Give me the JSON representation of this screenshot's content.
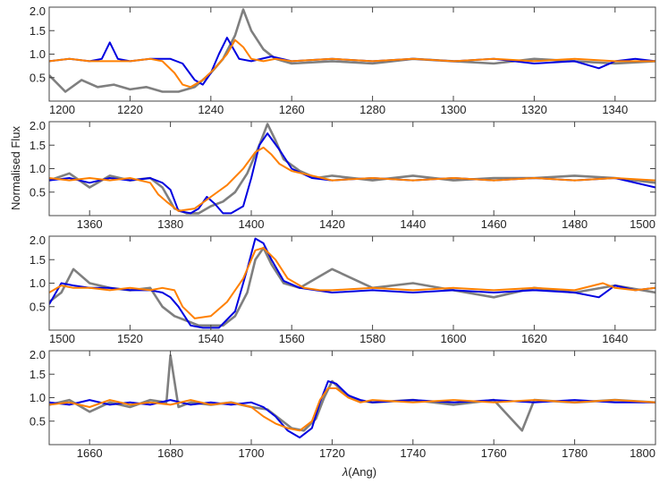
{
  "chart_data": {
    "type": "line",
    "ylabel": "Normalised Flux",
    "xlabel": "λ(Ang)",
    "xlabel_parts": {
      "symbol": "λ",
      "unit": "(Ang)"
    },
    "colors": {
      "observed": "#7f7f7f",
      "model_blue": "#0000e0",
      "model_orange": "#ff8000",
      "frame": "#444444"
    },
    "series_keys": [
      "observed",
      "model_blue",
      "model_orange"
    ],
    "panels": [
      {
        "xlim": [
          1200,
          1350
        ],
        "ylim": [
          0,
          2.0
        ],
        "xticks": [
          1200,
          1220,
          1240,
          1260,
          1280,
          1300,
          1320,
          1340
        ],
        "xtick_labels": [
          "1200",
          "1220",
          "1240",
          "1260",
          "1280",
          "1300",
          "1320",
          "1340"
        ],
        "yticks": [
          0.5,
          1.0,
          1.5,
          2.0
        ],
        "ytick_labels": [
          "0.5",
          "1.0",
          "1.5",
          "2.0"
        ],
        "series": [
          {
            "key": "observed",
            "x": [
              1200,
              1204,
              1208,
              1212,
              1216,
              1220,
              1224,
              1228,
              1232,
              1236,
              1240,
              1243,
              1246,
              1248,
              1250,
              1253,
              1256,
              1260,
              1270,
              1280,
              1290,
              1300,
              1310,
              1320,
              1330,
              1340,
              1350
            ],
            "y": [
              0.55,
              0.2,
              0.45,
              0.3,
              0.35,
              0.25,
              0.3,
              0.2,
              0.2,
              0.3,
              0.6,
              0.9,
              1.4,
              1.95,
              1.5,
              1.1,
              0.9,
              0.8,
              0.85,
              0.8,
              0.9,
              0.85,
              0.8,
              0.9,
              0.85,
              0.8,
              0.85
            ]
          },
          {
            "key": "model_blue",
            "x": [
              1200,
              1205,
              1210,
              1213,
              1215,
              1217,
              1220,
              1225,
              1230,
              1233,
              1236,
              1238,
              1240,
              1242,
              1244,
              1247,
              1250,
              1255,
              1260,
              1270,
              1280,
              1290,
              1300,
              1310,
              1320,
              1330,
              1336,
              1340,
              1345,
              1350
            ],
            "y": [
              0.85,
              0.9,
              0.85,
              0.9,
              1.25,
              0.9,
              0.85,
              0.9,
              0.9,
              0.8,
              0.45,
              0.35,
              0.6,
              1.0,
              1.35,
              0.9,
              0.85,
              0.95,
              0.85,
              0.9,
              0.85,
              0.9,
              0.85,
              0.9,
              0.8,
              0.85,
              0.7,
              0.85,
              0.9,
              0.85
            ]
          },
          {
            "key": "model_orange",
            "x": [
              1200,
              1205,
              1210,
              1215,
              1220,
              1225,
              1228,
              1231,
              1233,
              1235,
              1238,
              1241,
              1244,
              1246,
              1248,
              1250,
              1253,
              1256,
              1260,
              1270,
              1280,
              1290,
              1300,
              1310,
              1320,
              1330,
              1340,
              1350
            ],
            "y": [
              0.85,
              0.9,
              0.85,
              0.85,
              0.85,
              0.9,
              0.85,
              0.6,
              0.35,
              0.3,
              0.45,
              0.7,
              1.0,
              1.3,
              1.15,
              0.9,
              0.85,
              0.9,
              0.85,
              0.9,
              0.85,
              0.9,
              0.85,
              0.9,
              0.85,
              0.9,
              0.85,
              0.85
            ]
          }
        ]
      },
      {
        "xlim": [
          1350,
          1500
        ],
        "ylim": [
          0,
          2.0
        ],
        "xticks": [
          1360,
          1380,
          1400,
          1420,
          1440,
          1460,
          1480,
          1500
        ],
        "xtick_labels": [
          "1360",
          "1380",
          "1400",
          "1420",
          "1440",
          "1460",
          "1480",
          "1500"
        ],
        "yticks": [
          0.5,
          1.0,
          1.5,
          2.0
        ],
        "ytick_labels": [
          "0.5",
          "1.0",
          "1.5",
          "2.0"
        ],
        "series": [
          {
            "key": "observed",
            "x": [
              1350,
              1355,
              1360,
              1365,
              1370,
              1375,
              1378,
              1381,
              1384,
              1387,
              1390,
              1393,
              1396,
              1399,
              1402,
              1404,
              1406,
              1408,
              1412,
              1416,
              1420,
              1430,
              1440,
              1450,
              1460,
              1470,
              1480,
              1490,
              1500
            ],
            "y": [
              0.75,
              0.9,
              0.6,
              0.85,
              0.75,
              0.8,
              0.6,
              0.15,
              0.05,
              0.05,
              0.2,
              0.3,
              0.5,
              0.9,
              1.5,
              1.95,
              1.6,
              1.2,
              0.95,
              0.8,
              0.85,
              0.75,
              0.85,
              0.75,
              0.8,
              0.8,
              0.85,
              0.8,
              0.7
            ]
          },
          {
            "key": "model_blue",
            "x": [
              1350,
              1355,
              1360,
              1365,
              1370,
              1375,
              1378,
              1380,
              1382,
              1385,
              1387,
              1389,
              1391,
              1393,
              1395,
              1398,
              1400,
              1402,
              1404,
              1407,
              1410,
              1415,
              1420,
              1430,
              1440,
              1450,
              1460,
              1470,
              1480,
              1490,
              1500
            ],
            "y": [
              0.75,
              0.8,
              0.7,
              0.8,
              0.75,
              0.8,
              0.7,
              0.55,
              0.1,
              0.05,
              0.15,
              0.4,
              0.25,
              0.05,
              0.05,
              0.2,
              0.8,
              1.5,
              1.75,
              1.4,
              1.0,
              0.8,
              0.75,
              0.8,
              0.75,
              0.8,
              0.75,
              0.8,
              0.75,
              0.8,
              0.6
            ]
          },
          {
            "key": "model_orange",
            "x": [
              1350,
              1355,
              1360,
              1365,
              1370,
              1375,
              1377,
              1379,
              1382,
              1386,
              1390,
              1394,
              1398,
              1401,
              1403,
              1405,
              1407,
              1410,
              1415,
              1420,
              1430,
              1440,
              1450,
              1460,
              1470,
              1480,
              1490,
              1500
            ],
            "y": [
              0.8,
              0.75,
              0.8,
              0.75,
              0.8,
              0.7,
              0.45,
              0.3,
              0.1,
              0.15,
              0.4,
              0.65,
              1.0,
              1.35,
              1.45,
              1.3,
              1.1,
              0.95,
              0.85,
              0.75,
              0.8,
              0.75,
              0.8,
              0.75,
              0.8,
              0.75,
              0.8,
              0.75
            ]
          }
        ]
      },
      {
        "xlim": [
          1500,
          1650
        ],
        "ylim": [
          0,
          2.0
        ],
        "xticks": [
          1500,
          1520,
          1540,
          1560,
          1580,
          1600,
          1620,
          1640
        ],
        "xtick_labels": [
          "1500",
          "1520",
          "1540",
          "1560",
          "1580",
          "1600",
          "1620",
          "1640"
        ],
        "yticks": [
          0.5,
          1.0,
          1.5,
          2.0
        ],
        "ytick_labels": [
          "0.5",
          "1.0",
          "1.5",
          "2.0"
        ],
        "series": [
          {
            "key": "observed",
            "x": [
              1500,
              1503,
              1506,
              1510,
              1515,
              1520,
              1525,
              1528,
              1531,
              1534,
              1537,
              1540,
              1543,
              1546,
              1549,
              1551,
              1553,
              1555,
              1558,
              1562,
              1566,
              1570,
              1580,
              1590,
              1600,
              1610,
              1620,
              1630,
              1640,
              1650
            ],
            "y": [
              0.6,
              0.8,
              1.3,
              1.0,
              0.9,
              0.85,
              0.9,
              0.5,
              0.3,
              0.2,
              0.1,
              0.1,
              0.1,
              0.3,
              0.8,
              1.5,
              1.75,
              1.4,
              1.0,
              0.9,
              1.1,
              1.3,
              0.9,
              1.0,
              0.85,
              0.7,
              0.9,
              0.8,
              0.95,
              0.8
            ]
          },
          {
            "key": "model_blue",
            "x": [
              1500,
              1503,
              1506,
              1510,
              1515,
              1520,
              1525,
              1528,
              1530,
              1532,
              1535,
              1538,
              1542,
              1546,
              1549,
              1551,
              1553,
              1555,
              1558,
              1562,
              1566,
              1570,
              1580,
              1590,
              1600,
              1610,
              1620,
              1630,
              1636,
              1640,
              1645,
              1650
            ],
            "y": [
              0.55,
              1.0,
              0.95,
              0.9,
              0.9,
              0.85,
              0.85,
              0.8,
              0.7,
              0.5,
              0.1,
              0.05,
              0.05,
              0.4,
              1.3,
              1.95,
              1.85,
              1.5,
              1.05,
              0.9,
              0.85,
              0.8,
              0.85,
              0.8,
              0.85,
              0.8,
              0.85,
              0.8,
              0.7,
              0.95,
              0.85,
              0.9
            ]
          },
          {
            "key": "model_orange",
            "x": [
              1500,
              1503,
              1506,
              1510,
              1515,
              1520,
              1525,
              1528,
              1531,
              1533,
              1536,
              1540,
              1544,
              1548,
              1551,
              1553,
              1556,
              1559,
              1563,
              1567,
              1570,
              1580,
              1590,
              1600,
              1610,
              1620,
              1630,
              1637,
              1640,
              1645,
              1650
            ],
            "y": [
              0.8,
              0.95,
              0.9,
              0.9,
              0.85,
              0.9,
              0.85,
              0.9,
              0.85,
              0.5,
              0.25,
              0.3,
              0.6,
              1.1,
              1.7,
              1.75,
              1.5,
              1.1,
              0.9,
              0.85,
              0.85,
              0.9,
              0.85,
              0.9,
              0.85,
              0.9,
              0.85,
              1.0,
              0.9,
              0.85,
              0.9
            ]
          }
        ]
      },
      {
        "xlim": [
          1650,
          1800
        ],
        "ylim": [
          0,
          2.0
        ],
        "xticks": [
          1660,
          1680,
          1700,
          1720,
          1740,
          1760,
          1780,
          1800
        ],
        "xtick_labels": [
          "1660",
          "1680",
          "1700",
          "1720",
          "1740",
          "1760",
          "1780",
          "1800"
        ],
        "yticks": [
          0.5,
          1.0,
          1.5,
          2.0
        ],
        "ytick_labels": [
          "0.5",
          "1.0",
          "1.5",
          "2.0"
        ],
        "series": [
          {
            "key": "observed",
            "x": [
              1650,
              1655,
              1660,
              1665,
              1670,
              1675,
              1679,
              1680,
              1682,
              1685,
              1690,
              1695,
              1700,
              1704,
              1707,
              1710,
              1713,
              1716,
              1718,
              1720,
              1723,
              1726,
              1730,
              1740,
              1750,
              1760,
              1767,
              1770,
              1780,
              1790,
              1800
            ],
            "y": [
              0.85,
              0.95,
              0.7,
              0.9,
              0.8,
              0.95,
              0.9,
              1.9,
              0.8,
              0.9,
              0.85,
              0.9,
              0.8,
              0.75,
              0.55,
              0.35,
              0.3,
              0.55,
              1.0,
              1.35,
              1.1,
              0.95,
              0.9,
              0.95,
              0.85,
              0.95,
              0.3,
              0.95,
              0.9,
              0.95,
              0.9
            ]
          },
          {
            "key": "model_blue",
            "x": [
              1650,
              1655,
              1660,
              1665,
              1670,
              1675,
              1680,
              1685,
              1690,
              1695,
              1700,
              1703,
              1706,
              1709,
              1712,
              1715,
              1717,
              1719,
              1721,
              1724,
              1727,
              1730,
              1740,
              1750,
              1760,
              1770,
              1780,
              1790,
              1800
            ],
            "y": [
              0.9,
              0.85,
              0.95,
              0.85,
              0.9,
              0.85,
              0.95,
              0.85,
              0.9,
              0.85,
              0.9,
              0.8,
              0.6,
              0.3,
              0.15,
              0.35,
              0.9,
              1.35,
              1.3,
              1.05,
              0.95,
              0.9,
              0.95,
              0.9,
              0.95,
              0.9,
              0.95,
              0.9,
              0.9
            ]
          },
          {
            "key": "model_orange",
            "x": [
              1650,
              1655,
              1660,
              1665,
              1670,
              1675,
              1680,
              1685,
              1690,
              1695,
              1700,
              1703,
              1706,
              1709,
              1712,
              1715,
              1717,
              1719,
              1721,
              1724,
              1727,
              1730,
              1740,
              1750,
              1760,
              1770,
              1780,
              1790,
              1800
            ],
            "y": [
              0.85,
              0.9,
              0.8,
              0.95,
              0.85,
              0.9,
              0.85,
              0.95,
              0.85,
              0.9,
              0.8,
              0.6,
              0.45,
              0.35,
              0.3,
              0.5,
              0.95,
              1.2,
              1.2,
              1.0,
              0.9,
              0.95,
              0.9,
              0.95,
              0.9,
              0.95,
              0.9,
              0.95,
              0.9
            ]
          }
        ]
      }
    ]
  }
}
